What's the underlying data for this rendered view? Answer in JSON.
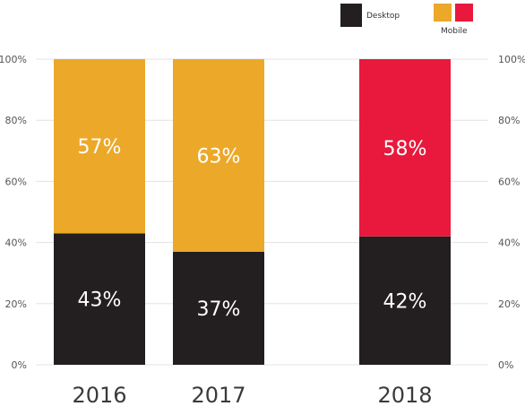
{
  "chart_data": {
    "type": "bar",
    "stacked": true,
    "categories": [
      "2016",
      "2017",
      "2018"
    ],
    "series": [
      {
        "name": "Desktop",
        "values": [
          43,
          37,
          42
        ],
        "labels": [
          "43%",
          "37%",
          "42%"
        ],
        "color": "#231f20"
      },
      {
        "name": "Mobile",
        "values": [
          57,
          63,
          58
        ],
        "labels": [
          "57%",
          "63%",
          "58%"
        ],
        "colors": [
          "#eca829",
          "#eca829",
          "#e8193c"
        ]
      }
    ],
    "ylim": [
      0,
      100
    ],
    "y_ticks": [
      "0%",
      "20%",
      "40%",
      "60%",
      "80%",
      "100%"
    ],
    "y_axis_sides": [
      "left",
      "right"
    ],
    "grid": true,
    "legend": {
      "placement": "top-right",
      "items": [
        {
          "label": "Desktop",
          "swatches": [
            "#231f20"
          ]
        },
        {
          "label": "Mobile",
          "swatches": [
            "#eca829",
            "#e8193c"
          ]
        }
      ]
    }
  }
}
